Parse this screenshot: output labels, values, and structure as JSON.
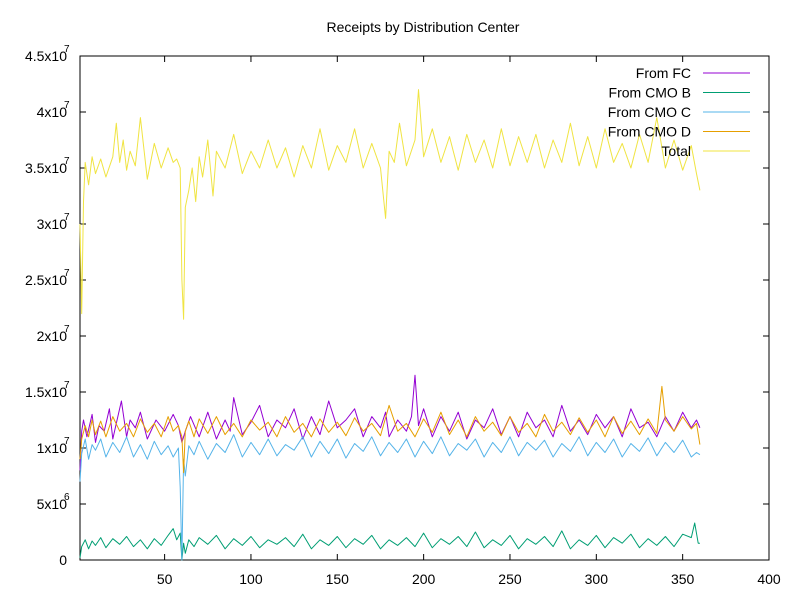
{
  "chart_data": {
    "type": "line",
    "title": "Receipts by Distribution Center",
    "xlabel": "",
    "ylabel": "",
    "xlim": [
      1,
      400
    ],
    "ylim": [
      0,
      45000000
    ],
    "x_ticks": [
      {
        "value": 50,
        "label": "50"
      },
      {
        "value": 100,
        "label": "100"
      },
      {
        "value": 150,
        "label": "150"
      },
      {
        "value": 200,
        "label": "200"
      },
      {
        "value": 250,
        "label": "250"
      },
      {
        "value": 300,
        "label": "300"
      },
      {
        "value": 350,
        "label": "350"
      },
      {
        "value": 400,
        "label": "400"
      }
    ],
    "y_ticks": [
      {
        "value": 0,
        "mantissa": "0",
        "exp": ""
      },
      {
        "value": 5000000,
        "mantissa": "5x10",
        "exp": "6"
      },
      {
        "value": 10000000,
        "mantissa": "1x10",
        "exp": "7"
      },
      {
        "value": 15000000,
        "mantissa": "1.5x10",
        "exp": "7"
      },
      {
        "value": 20000000,
        "mantissa": "2x10",
        "exp": "7"
      },
      {
        "value": 25000000,
        "mantissa": "2.5x10",
        "exp": "7"
      },
      {
        "value": 30000000,
        "mantissa": "3x10",
        "exp": "7"
      },
      {
        "value": 35000000,
        "mantissa": "3.5x10",
        "exp": "7"
      },
      {
        "value": 40000000,
        "mantissa": "4x10",
        "exp": "7"
      },
      {
        "value": 45000000,
        "mantissa": "4.5x10",
        "exp": "7"
      }
    ],
    "grid": false,
    "legend_position": "top-right",
    "series": [
      {
        "name": "From FC",
        "color": "#9400d3",
        "x": [
          1,
          2,
          3,
          5,
          8,
          10,
          12,
          15,
          18,
          20,
          22,
          25,
          28,
          30,
          33,
          36,
          40,
          45,
          50,
          55,
          58,
          60,
          62,
          65,
          70,
          75,
          80,
          85,
          88,
          90,
          95,
          100,
          105,
          110,
          115,
          120,
          125,
          130,
          135,
          140,
          145,
          150,
          155,
          160,
          165,
          170,
          175,
          178,
          180,
          185,
          190,
          193,
          195,
          197,
          200,
          205,
          210,
          215,
          220,
          225,
          230,
          235,
          240,
          245,
          250,
          255,
          260,
          265,
          270,
          275,
          280,
          285,
          290,
          295,
          300,
          305,
          310,
          315,
          320,
          325,
          330,
          335,
          340,
          345,
          350,
          355,
          358,
          360
        ],
        "y": [
          8000000,
          11500000,
          12500000,
          11000000,
          13000000,
          10500000,
          12000000,
          11500000,
          13500000,
          10800000,
          12200000,
          14200000,
          11000000,
          12500000,
          11800000,
          13200000,
          10800000,
          12500000,
          11500000,
          13000000,
          12000000,
          10500000,
          11500000,
          12800000,
          11000000,
          13200000,
          10800000,
          12500000,
          11500000,
          14500000,
          11200000,
          12300000,
          13800000,
          11000000,
          12500000,
          11800000,
          13500000,
          10800000,
          12800000,
          11200000,
          14200000,
          11800000,
          12500000,
          13500000,
          11000000,
          12800000,
          11800000,
          13200000,
          11000000,
          12500000,
          11500000,
          12800000,
          16500000,
          12000000,
          13500000,
          11000000,
          12800000,
          11500000,
          13200000,
          10800000,
          12500000,
          11800000,
          13500000,
          11200000,
          12800000,
          11000000,
          13200000,
          11800000,
          12500000,
          11000000,
          13800000,
          11500000,
          12500000,
          11200000,
          13000000,
          11800000,
          12800000,
          11000000,
          13500000,
          11800000,
          12300000,
          11000000,
          12800000,
          11500000,
          13200000,
          11800000,
          12500000,
          11800000
        ]
      },
      {
        "name": "From CMO B",
        "color": "#009e73",
        "x": [
          1,
          2,
          4,
          6,
          8,
          10,
          13,
          16,
          20,
          24,
          28,
          32,
          36,
          40,
          44,
          48,
          52,
          55,
          57,
          59,
          60,
          61,
          62,
          64,
          67,
          70,
          75,
          80,
          85,
          90,
          95,
          100,
          105,
          110,
          115,
          120,
          125,
          130,
          135,
          140,
          145,
          150,
          155,
          160,
          165,
          170,
          175,
          180,
          185,
          190,
          195,
          200,
          205,
          210,
          215,
          220,
          225,
          230,
          235,
          240,
          245,
          250,
          255,
          260,
          265,
          270,
          275,
          280,
          285,
          290,
          295,
          300,
          305,
          310,
          315,
          320,
          325,
          330,
          335,
          340,
          345,
          350,
          355,
          357,
          359,
          360
        ],
        "y": [
          200000,
          1200000,
          1800000,
          1000000,
          1700000,
          1300000,
          2000000,
          1100000,
          1900000,
          1400000,
          2100000,
          1200000,
          1800000,
          1000000,
          1900000,
          1300000,
          2200000,
          2800000,
          1800000,
          2400000,
          0,
          1500000,
          600000,
          1800000,
          1200000,
          2000000,
          1400000,
          2200000,
          1000000,
          1900000,
          1300000,
          2100000,
          1100000,
          1800000,
          1400000,
          2000000,
          1200000,
          2300000,
          1000000,
          1800000,
          1300000,
          2100000,
          1100000,
          1900000,
          1400000,
          2200000,
          1000000,
          1800000,
          1300000,
          2000000,
          1200000,
          2400000,
          1100000,
          1900000,
          1400000,
          2100000,
          1200000,
          2500000,
          1100000,
          1800000,
          1300000,
          2200000,
          1000000,
          1900000,
          1400000,
          2100000,
          1200000,
          2600000,
          1000000,
          1800000,
          1300000,
          2200000,
          1100000,
          2000000,
          1500000,
          2300000,
          1100000,
          1900000,
          1300000,
          2100000,
          1200000,
          2300000,
          2000000,
          3300000,
          1500000,
          1500000
        ]
      },
      {
        "name": "From CMO C",
        "color": "#56b4e9",
        "x": [
          1,
          2,
          4,
          6,
          8,
          10,
          13,
          16,
          20,
          24,
          28,
          32,
          36,
          40,
          44,
          48,
          52,
          55,
          58,
          59,
          60,
          61,
          62,
          64,
          67,
          70,
          75,
          80,
          85,
          90,
          95,
          100,
          105,
          110,
          115,
          120,
          125,
          130,
          135,
          140,
          145,
          150,
          155,
          160,
          165,
          170,
          175,
          180,
          185,
          190,
          195,
          200,
          205,
          210,
          215,
          220,
          225,
          230,
          235,
          240,
          245,
          250,
          255,
          260,
          265,
          270,
          275,
          280,
          285,
          290,
          295,
          300,
          305,
          310,
          315,
          320,
          325,
          330,
          335,
          340,
          345,
          350,
          355,
          358,
          360
        ],
        "y": [
          7000000,
          9500000,
          10800000,
          9000000,
          10300000,
          9800000,
          10800000,
          9200000,
          10500000,
          9600000,
          11000000,
          9200000,
          10300000,
          9000000,
          10600000,
          9400000,
          10200000,
          9200000,
          10000000,
          6500000,
          0,
          9000000,
          7500000,
          10200000,
          9400000,
          10600000,
          9000000,
          10400000,
          9600000,
          11200000,
          9200000,
          10500000,
          9400000,
          10800000,
          9300000,
          10300000,
          9800000,
          11000000,
          9200000,
          10600000,
          9500000,
          10800000,
          9100000,
          10400000,
          9700000,
          11000000,
          9300000,
          10500000,
          9600000,
          10800000,
          9200000,
          10600000,
          9500000,
          11000000,
          9300000,
          10400000,
          9800000,
          10800000,
          9200000,
          10500000,
          9600000,
          11000000,
          9300000,
          10500000,
          9800000,
          10700000,
          9200000,
          10400000,
          9700000,
          11000000,
          9300000,
          10500000,
          9600000,
          10800000,
          9200000,
          10400000,
          9700000,
          10900000,
          9300000,
          10500000,
          9600000,
          10700000,
          9200000,
          9600000,
          9400000
        ]
      },
      {
        "name": "From CMO D",
        "color": "#e69f00",
        "x": [
          1,
          2,
          4,
          6,
          8,
          10,
          13,
          16,
          20,
          24,
          28,
          32,
          36,
          40,
          44,
          48,
          52,
          55,
          58,
          60,
          61,
          62,
          64,
          67,
          70,
          75,
          80,
          85,
          90,
          95,
          100,
          105,
          110,
          115,
          120,
          125,
          130,
          135,
          140,
          145,
          150,
          155,
          160,
          165,
          170,
          175,
          180,
          185,
          190,
          195,
          200,
          205,
          210,
          215,
          220,
          225,
          230,
          235,
          240,
          245,
          250,
          255,
          260,
          265,
          270,
          275,
          280,
          285,
          290,
          295,
          300,
          305,
          310,
          315,
          320,
          325,
          330,
          335,
          338,
          340,
          345,
          350,
          355,
          358,
          360
        ],
        "y": [
          9000000,
          10800000,
          12000000,
          11000000,
          12500000,
          11200000,
          12400000,
          11000000,
          12800000,
          11500000,
          12200000,
          11000000,
          12600000,
          11400000,
          12200000,
          11000000,
          12800000,
          11500000,
          12000000,
          11000000,
          7800000,
          11500000,
          12400000,
          11000000,
          12600000,
          11300000,
          12800000,
          11200000,
          12200000,
          11000000,
          12500000,
          11600000,
          12300000,
          11000000,
          12800000,
          11400000,
          12200000,
          11000000,
          12600000,
          11400000,
          12300000,
          11100000,
          12700000,
          11500000,
          12200000,
          11100000,
          13800000,
          11500000,
          12200000,
          11000000,
          12600000,
          11400000,
          13200000,
          11200000,
          12500000,
          11000000,
          12800000,
          11500000,
          12300000,
          11100000,
          12800000,
          11400000,
          12200000,
          11000000,
          13000000,
          11500000,
          12300000,
          11200000,
          12700000,
          11400000,
          12500000,
          11000000,
          12800000,
          11300000,
          12400000,
          11200000,
          12600000,
          11300000,
          15500000,
          12500000,
          11500000,
          12800000,
          11700000,
          12200000,
          10300000
        ]
      },
      {
        "name": "Total",
        "color": "#f0e442",
        "x": [
          1,
          2,
          3,
          4,
          6,
          8,
          10,
          13,
          16,
          20,
          22,
          24,
          26,
          28,
          30,
          33,
          36,
          40,
          44,
          48,
          52,
          55,
          57,
          59,
          60,
          61,
          62,
          64,
          66,
          68,
          70,
          72,
          75,
          78,
          80,
          85,
          90,
          95,
          100,
          105,
          110,
          115,
          120,
          125,
          130,
          135,
          140,
          145,
          150,
          155,
          160,
          165,
          170,
          175,
          178,
          180,
          183,
          186,
          190,
          195,
          197,
          200,
          205,
          210,
          215,
          220,
          225,
          230,
          235,
          240,
          245,
          250,
          255,
          260,
          265,
          270,
          275,
          280,
          285,
          290,
          295,
          300,
          305,
          310,
          315,
          320,
          325,
          330,
          335,
          340,
          345,
          350,
          355,
          358,
          360
        ],
        "y": [
          30000000,
          22000000,
          32000000,
          35500000,
          33500000,
          36000000,
          34500000,
          35800000,
          34200000,
          36000000,
          39000000,
          35500000,
          37500000,
          34800000,
          36500000,
          35200000,
          39500000,
          34000000,
          37200000,
          35000000,
          36800000,
          35500000,
          35800000,
          35000000,
          25000000,
          21500000,
          31500000,
          33000000,
          35000000,
          32000000,
          36000000,
          34200000,
          37500000,
          32500000,
          36500000,
          35000000,
          38000000,
          34500000,
          36500000,
          35000000,
          37500000,
          35000000,
          36800000,
          34200000,
          37000000,
          35000000,
          38500000,
          34800000,
          37000000,
          35500000,
          38500000,
          35000000,
          37200000,
          35000000,
          30500000,
          36500000,
          35500000,
          39000000,
          35200000,
          37500000,
          42000000,
          36000000,
          38500000,
          35500000,
          37800000,
          34800000,
          38000000,
          35500000,
          37500000,
          35000000,
          38500000,
          35200000,
          37800000,
          35500000,
          38000000,
          35000000,
          37500000,
          35500000,
          39000000,
          35200000,
          37800000,
          35000000,
          38500000,
          35500000,
          37200000,
          35000000,
          38000000,
          35500000,
          39500000,
          35000000,
          37500000,
          34800000,
          37000000,
          34500000,
          33000000
        ]
      }
    ]
  }
}
